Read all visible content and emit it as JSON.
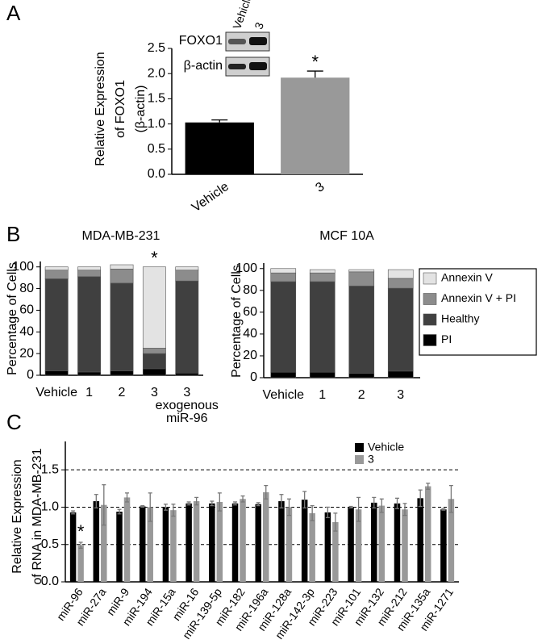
{
  "chart_data": [
    {
      "type": "bar",
      "panel": "A",
      "ylabel": [
        "Relative Expression",
        "of FOXO1",
        "(β-actin)"
      ],
      "categories": [
        "Vehicle",
        "3"
      ],
      "values": [
        1.03,
        1.92
      ],
      "errors": [
        0.05,
        0.13
      ],
      "colors": [
        "#000000",
        "#999999"
      ],
      "ylim": [
        0,
        2.5
      ],
      "yticks": [
        {
          "value": 0,
          "label": "0.0"
        },
        0.5,
        {
          "value": 1,
          "label": "1.0"
        },
        1.5,
        {
          "value": 2,
          "label": "2.0"
        },
        2.5
      ],
      "annotations": [
        {
          "text": "*",
          "category": "3"
        }
      ],
      "blot": {
        "lanes": [
          "Vehicle",
          "3"
        ],
        "rows": [
          "FOXO1",
          "β-actin"
        ]
      }
    },
    {
      "type": "stacked-bar",
      "panel": "B",
      "title": "MDA-MB-231",
      "ylabel": [
        "Percentage of Cells"
      ],
      "categories": [
        "Vehicle",
        "1",
        "2",
        "3",
        [
          "3",
          "exogenous",
          "miR-96"
        ]
      ],
      "series": [
        {
          "name": "PI",
          "color": "#000000",
          "values": [
            4,
            3,
            4,
            6,
            2
          ]
        },
        {
          "name": "Healthy",
          "color": "#404040",
          "values": [
            85,
            88,
            81,
            14,
            85
          ]
        },
        {
          "name": "Annexin V + PI",
          "color": "#8c8c8c",
          "values": [
            8,
            6,
            13,
            5,
            10
          ]
        },
        {
          "name": "Annexin V",
          "color": "#e3e3e3",
          "values": [
            3,
            3,
            4,
            75,
            3
          ]
        }
      ],
      "ylim": [
        0,
        105
      ],
      "yticks": [
        0,
        20,
        40,
        60,
        80,
        100
      ],
      "annotations": [
        {
          "text": "*",
          "category": "3"
        }
      ],
      "legend": false
    },
    {
      "type": "stacked-bar",
      "title": "MCF 10A",
      "ylabel": [
        "Percentage of Cells"
      ],
      "categories": [
        "Vehicle",
        "1",
        "2",
        "3"
      ],
      "series": [
        {
          "name": "PI",
          "color": "#000000",
          "values": [
            5,
            5,
            4,
            6
          ]
        },
        {
          "name": "Healthy",
          "color": "#404040",
          "values": [
            83,
            83,
            80,
            76
          ]
        },
        {
          "name": "Annexin V + PI",
          "color": "#8c8c8c",
          "values": [
            8,
            8,
            13,
            9
          ]
        },
        {
          "name": "Annexin V",
          "color": "#e3e3e3",
          "values": [
            4,
            3,
            2,
            8
          ]
        }
      ],
      "ylim": [
        0,
        105
      ],
      "yticks": [
        0,
        20,
        40,
        60,
        80,
        100
      ],
      "legend": true
    },
    {
      "type": "grouped-bar",
      "panel": "C",
      "ylabel": [
        "Relative Expression",
        "of RNA in MDA-MB-231"
      ],
      "categories": [
        "miR-96",
        "miR-27a",
        "miR-9",
        "miR-194",
        "miR-15a",
        "miR-16",
        "miR-139-5p",
        "miR-182",
        "miR-196a",
        "miR-128a",
        "miR-142-3p",
        "miR-223",
        "miR-101",
        "miR-132",
        "miR-212",
        "miR-135a",
        "miR-1271"
      ],
      "series": [
        {
          "name": "Vehicle",
          "color": "#000000",
          "values": [
            0.93,
            1.08,
            0.94,
            1.01,
            1.0,
            1.05,
            1.05,
            1.05,
            1.04,
            1.08,
            1.1,
            0.93,
            1.0,
            1.06,
            1.05,
            1.12,
            0.97
          ],
          "errors": [
            0.02,
            0.09,
            0.03,
            0.01,
            0.04,
            0.02,
            0.03,
            0.02,
            0.02,
            0.09,
            0.11,
            0.07,
            0.01,
            0.07,
            0.07,
            0.11,
            0.01
          ]
        },
        {
          "name": "3",
          "color": "#999999",
          "values": [
            0.49,
            1.03,
            1.13,
            1.0,
            0.96,
            1.08,
            1.07,
            1.11,
            1.2,
            1.0,
            0.92,
            0.8,
            0.97,
            1.02,
            0.97,
            1.28,
            1.11
          ],
          "errors": [
            0.04,
            0.27,
            0.06,
            0.19,
            0.08,
            0.05,
            0.12,
            0.04,
            0.09,
            0.11,
            0.1,
            0.12,
            0.16,
            0.09,
            0.08,
            0.04,
            0.18
          ]
        }
      ],
      "ylim": [
        0,
        1.88
      ],
      "yticks": [
        {
          "value": 0,
          "label": "0.0"
        },
        0.5,
        {
          "value": 1,
          "label": "1.0"
        },
        1.5
      ],
      "grid": "dashed",
      "annotations": [
        {
          "text": "*",
          "category": "miR-96",
          "series": "3"
        }
      ],
      "legend": true
    }
  ]
}
